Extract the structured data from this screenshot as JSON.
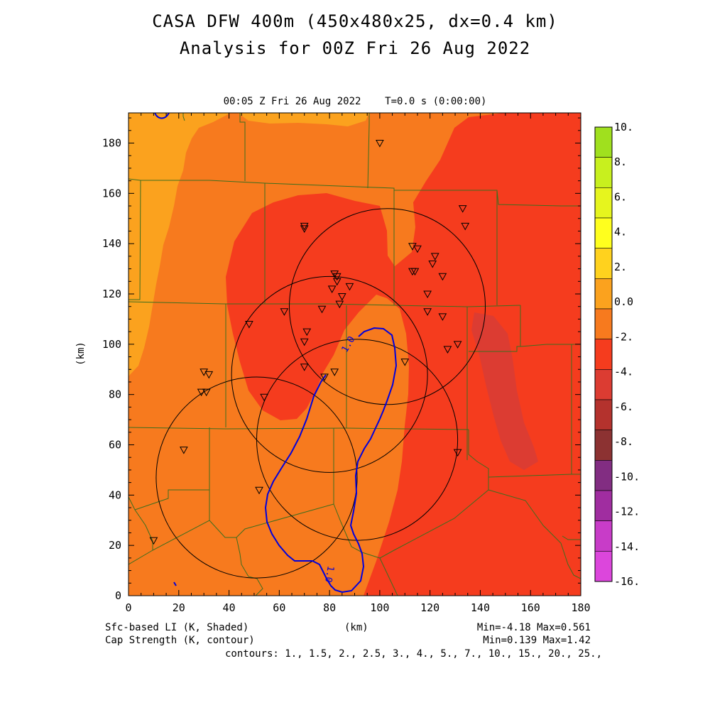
{
  "header": {
    "title1": "CASA DFW 400m (450x480x25, dx=0.4 km)",
    "title2": "Analysis for 00Z Fri 26 Aug 2022",
    "subtitle": "00:05 Z Fri 26 Aug 2022    T=0.0 s (0:00:00)"
  },
  "footer": {
    "field1": "Sfc-based LI (K, Shaded)",
    "field2": "Cap Strength (K, contour)",
    "xunit": "(km)",
    "minmax1": "Min=-4.18 Max=0.561",
    "minmax2": "Min=0.139 Max=1.42",
    "contours": "contours: 1., 1.5, 2., 2.5, 3., 4., 5., 7., 10., 15., 20., 25.,"
  },
  "chart_data": {
    "type": "heatmap",
    "xlabel": "(km)",
    "ylabel": "(km)",
    "xlim": [
      0,
      180
    ],
    "ylim": [
      0,
      192
    ],
    "xticks": [
      0,
      20,
      40,
      60,
      80,
      100,
      120,
      140,
      160,
      180
    ],
    "yticks": [
      0,
      20,
      40,
      60,
      80,
      100,
      120,
      140,
      160,
      180
    ],
    "shaded_field": "Sfc-based LI (K, Shaded)",
    "contour_field": "Cap Strength (K, contour)",
    "colorbar": {
      "labels": [
        "10.",
        "8.",
        "6.",
        "4.",
        "2.",
        "0.0",
        "-2.",
        "-4.",
        "-6.",
        "-8.",
        "-10.",
        "-12.",
        "-14.",
        "-16."
      ],
      "colors": [
        "#a0e01e",
        "#c8f01e",
        "#e6f51e",
        "#ffff1e",
        "#ffd21e",
        "#fba21e",
        "#f77a1e",
        "#f53c1e",
        "#dc3c32",
        "#b4322d",
        "#8c3232",
        "#822d82",
        "#a02da0",
        "#c83cc8",
        "#dc46dc"
      ]
    },
    "field_range": {
      "min": -4.18,
      "max": 0.561
    },
    "contour_range": {
      "min": 0.139,
      "max": 1.42
    },
    "contour_levels": [
      1,
      1.5,
      2,
      2.5,
      3,
      4,
      5,
      7,
      10,
      15,
      20,
      25
    ],
    "contour_label": "1.0",
    "radar_range_rings": [
      {
        "cx": 103,
        "cy": 115,
        "r": 39
      },
      {
        "cx": 80,
        "cy": 88,
        "r": 39
      },
      {
        "cx": 51,
        "cy": 47,
        "r": 40
      },
      {
        "cx": 91,
        "cy": 62,
        "r": 40
      }
    ],
    "stations": [
      [
        100,
        180
      ],
      [
        133,
        154
      ],
      [
        134,
        147
      ],
      [
        70,
        147
      ],
      [
        70,
        146
      ],
      [
        113,
        139
      ],
      [
        115,
        138
      ],
      [
        122,
        135
      ],
      [
        121,
        132
      ],
      [
        114,
        129
      ],
      [
        113,
        129
      ],
      [
        82,
        128
      ],
      [
        83,
        127
      ],
      [
        125,
        127
      ],
      [
        83,
        125
      ],
      [
        88,
        123
      ],
      [
        81,
        122
      ],
      [
        85,
        119
      ],
      [
        119,
        120
      ],
      [
        84,
        116
      ],
      [
        62,
        113
      ],
      [
        77,
        114
      ],
      [
        119,
        113
      ],
      [
        125,
        111
      ],
      [
        48,
        108
      ],
      [
        71,
        105
      ],
      [
        70,
        101
      ],
      [
        127,
        98
      ],
      [
        131,
        100
      ],
      [
        30,
        89
      ],
      [
        32,
        88
      ],
      [
        110,
        93
      ],
      [
        70,
        91
      ],
      [
        82,
        89
      ],
      [
        78,
        87
      ],
      [
        29,
        81
      ],
      [
        31,
        81
      ],
      [
        54,
        79
      ],
      [
        22,
        58
      ],
      [
        131,
        57
      ],
      [
        52,
        42
      ],
      [
        10,
        22
      ]
    ]
  }
}
